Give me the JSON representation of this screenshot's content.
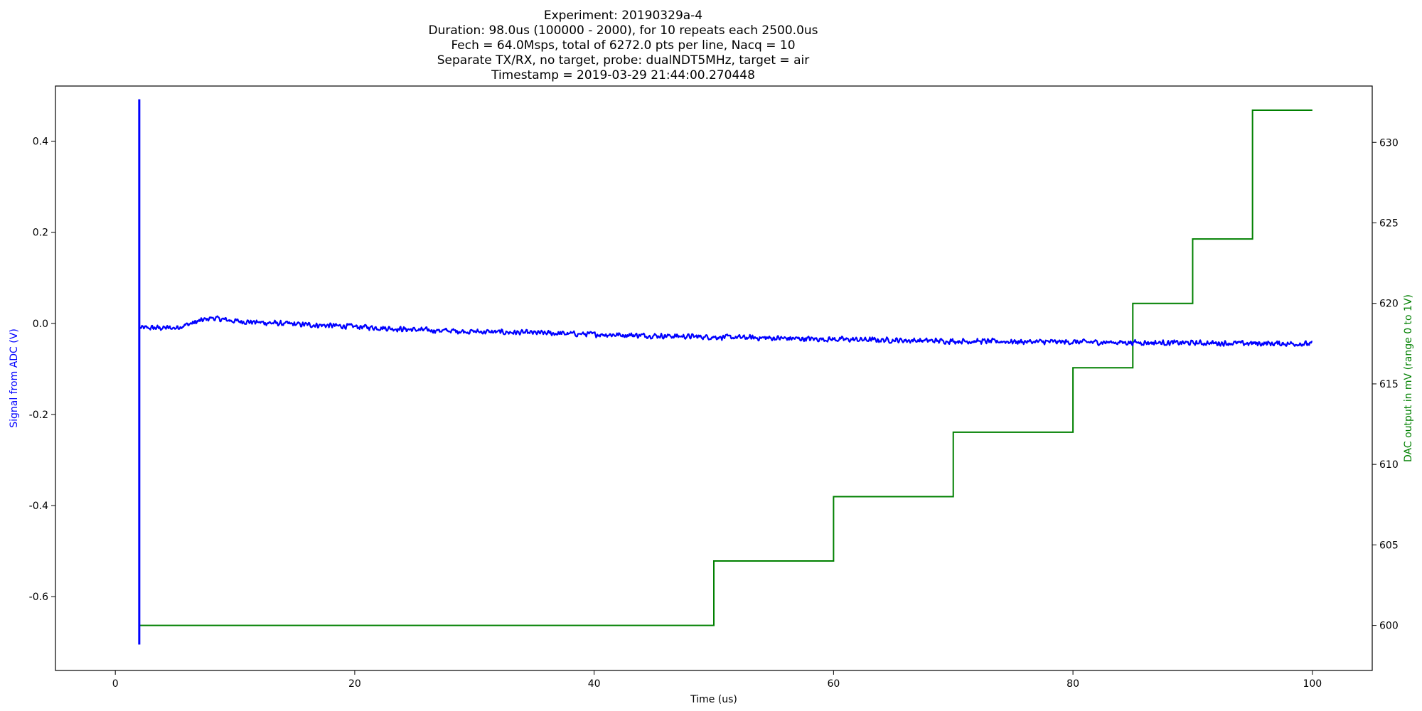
{
  "chart_data": {
    "type": "line",
    "title_lines": [
      "Experiment: 20190329a-4",
      "Duration: 98.0us (100000 - 2000), for 10 repeats each 2500.0us",
      "Fech = 64.0Msps, total of 6272.0 pts per line, Nacq = 10",
      "Separate TX/RX, no target, probe: dualNDT5MHz, target = air",
      "Timestamp = 2019-03-29 21:44:00.270448"
    ],
    "xlabel": "Time (us)",
    "ylabel_left": "Signal from ADC (V)",
    "ylabel_right": "DAC output in mV (range 0 to 1V)",
    "xlim": [
      -5,
      105
    ],
    "ylim_left": [
      -0.762,
      0.521
    ],
    "ylim_right": [
      597.2,
      633.5
    ],
    "x_ticks": [
      0,
      20,
      40,
      60,
      80,
      100
    ],
    "y_ticks_left": [
      -0.6,
      -0.4,
      -0.2,
      0.0,
      0.2,
      0.4
    ],
    "y_ticks_right": [
      600,
      605,
      610,
      615,
      620,
      625,
      630
    ],
    "grid": false,
    "series": [
      {
        "axis": "left",
        "color": "#0000ff",
        "spike": {
          "x": 2.0,
          "y_min": -0.705,
          "y_max": 0.492
        },
        "trend": [
          {
            "x": 2.0,
            "y": -0.01
          },
          {
            "x": 5.0,
            "y": -0.01
          },
          {
            "x": 8.0,
            "y": 0.012
          },
          {
            "x": 10.0,
            "y": 0.005
          },
          {
            "x": 15.0,
            "y": -0.002
          },
          {
            "x": 20.0,
            "y": -0.007
          },
          {
            "x": 25.0,
            "y": -0.014
          },
          {
            "x": 30.0,
            "y": -0.018
          },
          {
            "x": 40.0,
            "y": -0.024
          },
          {
            "x": 50.0,
            "y": -0.03
          },
          {
            "x": 60.0,
            "y": -0.035
          },
          {
            "x": 70.0,
            "y": -0.039
          },
          {
            "x": 80.0,
            "y": -0.041
          },
          {
            "x": 90.0,
            "y": -0.043
          },
          {
            "x": 100.0,
            "y": -0.045
          }
        ],
        "noise_amplitude": 0.007
      },
      {
        "axis": "right",
        "color": "#008000",
        "step": "post",
        "x": [
          2,
          50,
          60,
          70,
          80,
          85,
          90,
          95,
          100
        ],
        "y": [
          600,
          604,
          608,
          612,
          616,
          620,
          624,
          632,
          632
        ]
      }
    ]
  }
}
